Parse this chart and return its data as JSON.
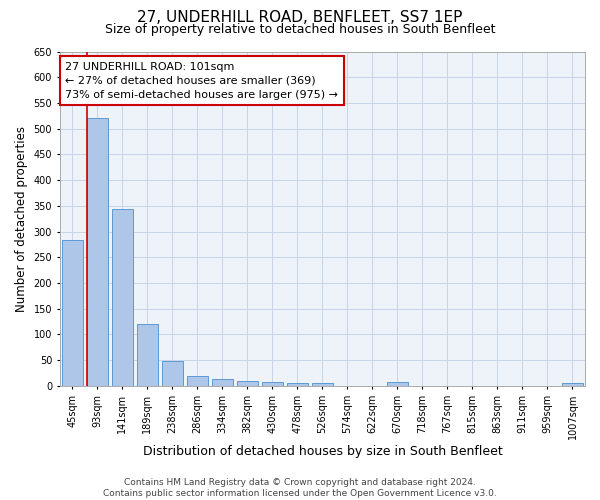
{
  "title": "27, UNDERHILL ROAD, BENFLEET, SS7 1EP",
  "subtitle": "Size of property relative to detached houses in South Benfleet",
  "xlabel": "Distribution of detached houses by size in South Benfleet",
  "ylabel": "Number of detached properties",
  "categories": [
    "45sqm",
    "93sqm",
    "141sqm",
    "189sqm",
    "238sqm",
    "286sqm",
    "334sqm",
    "382sqm",
    "430sqm",
    "478sqm",
    "526sqm",
    "574sqm",
    "622sqm",
    "670sqm",
    "718sqm",
    "767sqm",
    "815sqm",
    "863sqm",
    "911sqm",
    "959sqm",
    "1007sqm"
  ],
  "values": [
    283,
    520,
    343,
    120,
    48,
    20,
    13,
    10,
    8,
    6,
    5,
    0,
    0,
    7,
    0,
    0,
    0,
    0,
    0,
    0,
    6
  ],
  "bar_color": "#aec6e8",
  "bar_edge_color": "#5b9bd5",
  "vline_color": "#cc0000",
  "annotation_line1": "27 UNDERHILL ROAD: 101sqm",
  "annotation_line2": "← 27% of detached houses are smaller (369)",
  "annotation_line3": "73% of semi-detached houses are larger (975) →",
  "annotation_box_color": "#cc0000",
  "ylim": [
    0,
    650
  ],
  "yticks": [
    0,
    50,
    100,
    150,
    200,
    250,
    300,
    350,
    400,
    450,
    500,
    550,
    600,
    650
  ],
  "footer": "Contains HM Land Registry data © Crown copyright and database right 2024.\nContains public sector information licensed under the Open Government Licence v3.0.",
  "background_color": "#eef2f9",
  "grid_color": "#c8d4e8",
  "title_fontsize": 11,
  "subtitle_fontsize": 9,
  "xlabel_fontsize": 9,
  "ylabel_fontsize": 8.5,
  "tick_fontsize": 7,
  "annotation_fontsize": 8,
  "footer_fontsize": 6.5
}
